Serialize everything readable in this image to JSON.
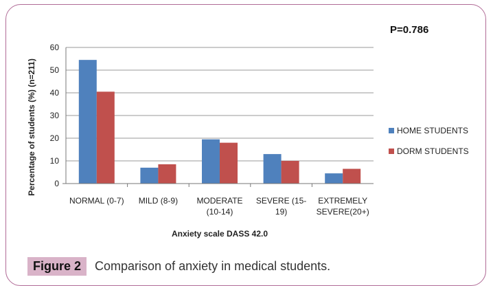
{
  "chart_data": {
    "type": "bar",
    "categories": [
      "NORMAL (0-7)",
      "MILD (8-9)",
      "MODERATE (10-14)",
      "SEVERE (15-19)",
      "EXTREMELY SEVERE(20+)"
    ],
    "category_lines": [
      [
        "NORMAL (0-7)"
      ],
      [
        "MILD (8-9)"
      ],
      [
        "MODERATE",
        "(10-14)"
      ],
      [
        "SEVERE (15-",
        "19)"
      ],
      [
        "EXTREMELY",
        "SEVERE(20+)"
      ]
    ],
    "series": [
      {
        "name": "HOME STUDENTS",
        "color": "#4f81bd",
        "values": [
          54.5,
          7,
          19.5,
          13,
          4.5
        ]
      },
      {
        "name": "DORM STUDENTS",
        "color": "#c0504d",
        "values": [
          40.5,
          8.5,
          18,
          10,
          6.5
        ]
      }
    ],
    "ylabel": "Percentage of students (%) (n=211)",
    "xlabel": "Anxiety scale DASS 42.0",
    "ylim": [
      0,
      60
    ],
    "yticks": [
      0,
      10,
      20,
      30,
      40,
      50,
      60
    ],
    "grid": true,
    "legend": "right",
    "annotation": "P=0.786"
  },
  "caption": {
    "label": "Figure 2",
    "text": "Comparison of anxiety in medical students."
  }
}
